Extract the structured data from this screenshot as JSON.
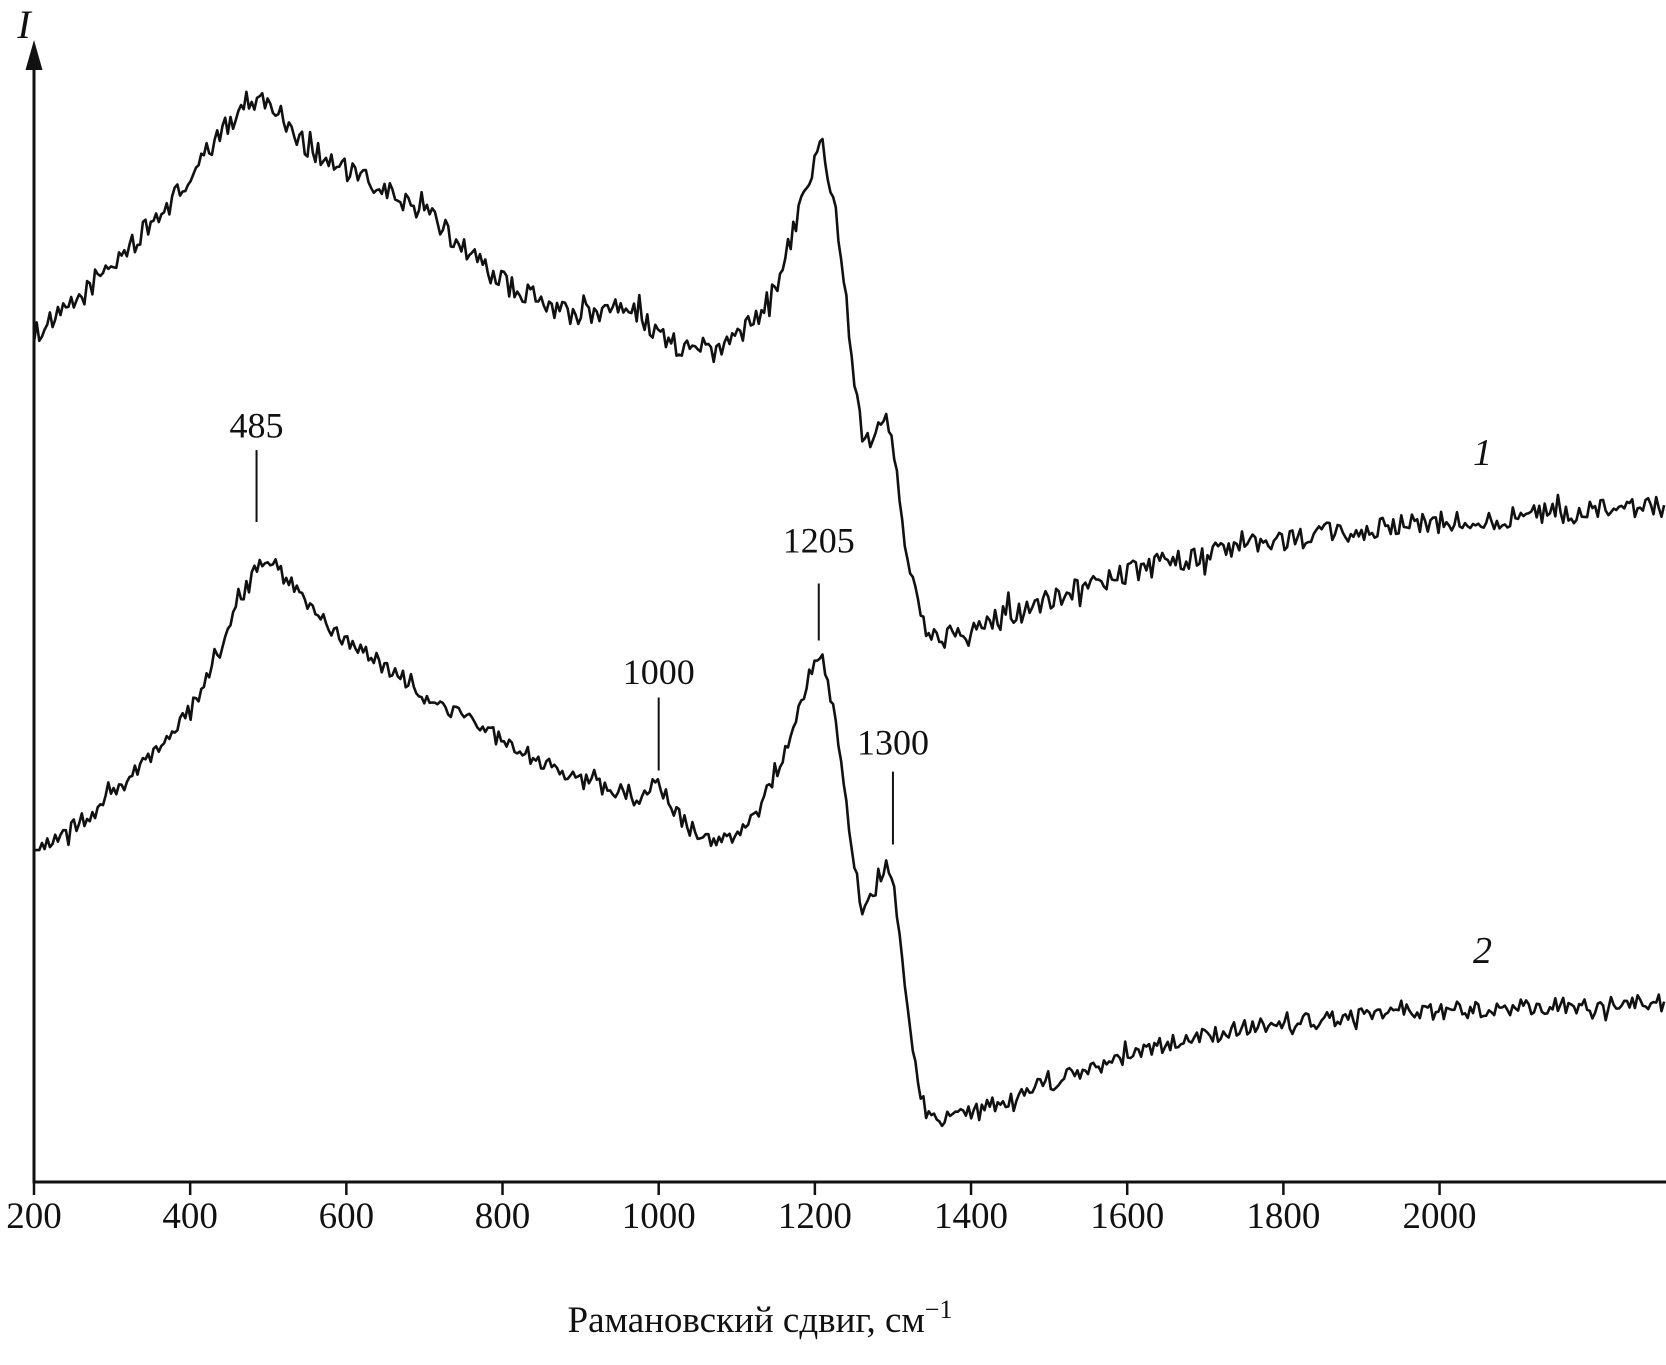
{
  "figure": {
    "y_axis_title": "I",
    "x_axis_title_base": "Рамановский сдвиг, см",
    "x_axis_title_superscript": "−1",
    "x_axis_title_full": "Рамановский сдвиг, см⁻¹"
  },
  "chart_data": {
    "type": "line",
    "title": "",
    "xlabel": "Рамановский сдвиг, см⁻¹",
    "ylabel": "I",
    "xlim": [
      200,
      2290
    ],
    "ylim": [
      0,
      100
    ],
    "x_ticks": [
      200,
      400,
      600,
      800,
      1000,
      1200,
      1400,
      1600,
      1800,
      2000
    ],
    "grid": false,
    "legend_position": "inline-right",
    "line_color": "#111111",
    "series": [
      {
        "name": "1",
        "noise_amplitude": 1.0,
        "label": {
          "text": "1",
          "x": 2055,
          "y": 62.9
        },
        "points": [
          [
            200,
            74.5
          ],
          [
            250,
            77
          ],
          [
            300,
            80.5
          ],
          [
            350,
            84
          ],
          [
            400,
            88
          ],
          [
            440,
            92
          ],
          [
            480,
            95
          ],
          [
            510,
            94
          ],
          [
            540,
            91.5
          ],
          [
            580,
            89.5
          ],
          [
            620,
            88
          ],
          [
            660,
            86.5
          ],
          [
            700,
            85
          ],
          [
            750,
            82
          ],
          [
            800,
            79
          ],
          [
            850,
            77.3
          ],
          [
            900,
            76
          ],
          [
            940,
            76.8
          ],
          [
            960,
            77
          ],
          [
            990,
            75
          ],
          [
            1020,
            73.5
          ],
          [
            1060,
            72.8
          ],
          [
            1100,
            74
          ],
          [
            1140,
            77.5
          ],
          [
            1170,
            83
          ],
          [
            1195,
            88.5
          ],
          [
            1207,
            91.2
          ],
          [
            1220,
            87
          ],
          [
            1235,
            81
          ],
          [
            1250,
            71
          ],
          [
            1262,
            65.5
          ],
          [
            1275,
            65.8
          ],
          [
            1290,
            67
          ],
          [
            1300,
            65
          ],
          [
            1312,
            58
          ],
          [
            1330,
            51
          ],
          [
            1350,
            47.8
          ],
          [
            1375,
            48.2
          ],
          [
            1420,
            49.3
          ],
          [
            1500,
            51.2
          ],
          [
            1600,
            53.5
          ],
          [
            1700,
            55
          ],
          [
            1800,
            56.3
          ],
          [
            1900,
            57.2
          ],
          [
            2000,
            57.8
          ],
          [
            2100,
            58.4
          ],
          [
            2200,
            58.8
          ],
          [
            2290,
            59.2
          ]
        ]
      },
      {
        "name": "2",
        "noise_amplitude": 0.75,
        "label": {
          "text": "2",
          "x": 2055,
          "y": 19.2
        },
        "points": [
          [
            200,
            29
          ],
          [
            250,
            31
          ],
          [
            300,
            34
          ],
          [
            350,
            37.5
          ],
          [
            400,
            41.5
          ],
          [
            440,
            46.5
          ],
          [
            470,
            52
          ],
          [
            490,
            54.5
          ],
          [
            515,
            53.5
          ],
          [
            545,
            51
          ],
          [
            580,
            48.5
          ],
          [
            620,
            46.5
          ],
          [
            660,
            44.8
          ],
          [
            700,
            43
          ],
          [
            750,
            40.8
          ],
          [
            800,
            38.8
          ],
          [
            850,
            36.9
          ],
          [
            900,
            35.3
          ],
          [
            950,
            34.2
          ],
          [
            980,
            33.8
          ],
          [
            1000,
            35.2
          ],
          [
            1012,
            33.2
          ],
          [
            1040,
            31
          ],
          [
            1070,
            30
          ],
          [
            1100,
            30.8
          ],
          [
            1130,
            33
          ],
          [
            1160,
            37.5
          ],
          [
            1185,
            42.5
          ],
          [
            1205,
            46
          ],
          [
            1218,
            43.5
          ],
          [
            1232,
            38
          ],
          [
            1248,
            29
          ],
          [
            1260,
            24.3
          ],
          [
            1272,
            25
          ],
          [
            1285,
            26.8
          ],
          [
            1297,
            27.2
          ],
          [
            1308,
            22
          ],
          [
            1322,
            13
          ],
          [
            1338,
            7
          ],
          [
            1355,
            5.6
          ],
          [
            1380,
            5.8
          ],
          [
            1430,
            6.8
          ],
          [
            1500,
            8.6
          ],
          [
            1580,
            10.6
          ],
          [
            1660,
            12.2
          ],
          [
            1740,
            13.3
          ],
          [
            1820,
            14
          ],
          [
            1900,
            14.6
          ],
          [
            2000,
            15
          ],
          [
            2100,
            15.3
          ],
          [
            2200,
            15.5
          ],
          [
            2290,
            15.7
          ]
        ]
      }
    ],
    "peak_annotations": [
      {
        "label": "485",
        "x": 485,
        "text_y": 65.3,
        "line_y": [
          64.2,
          57.9
        ]
      },
      {
        "label": "1000",
        "x": 1000,
        "text_y": 43.7,
        "line_y": [
          42.5,
          36.1
        ]
      },
      {
        "label": "1205",
        "x": 1205,
        "text_y": 55.2,
        "line_y": [
          52.5,
          47.5
        ]
      },
      {
        "label": "1300",
        "x": 1300,
        "text_y": 37.5,
        "line_y": [
          36.0,
          29.6
        ]
      }
    ]
  }
}
